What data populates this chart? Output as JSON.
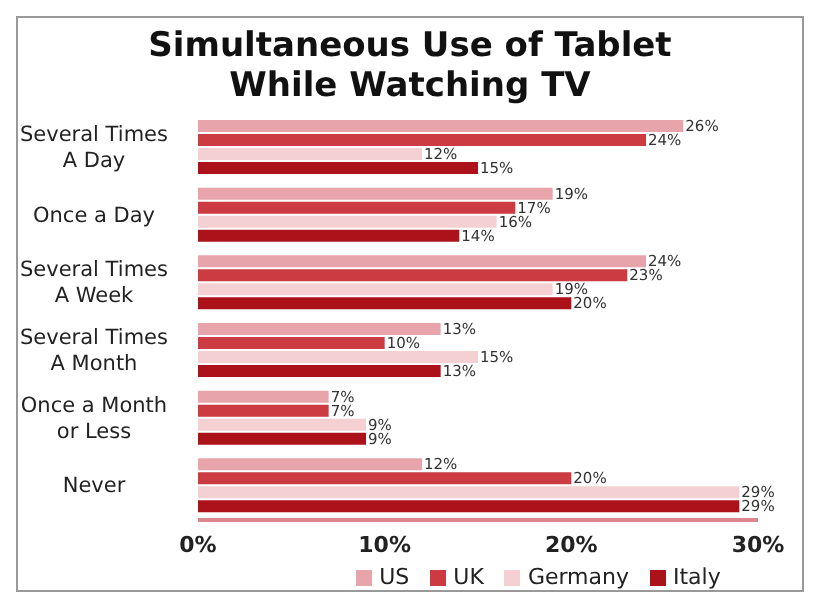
{
  "chart_data": {
    "type": "bar",
    "orientation": "horizontal",
    "title": "Simultaneous Use of Tablet While Watching TV",
    "categories": [
      "Several Times A Day",
      "Once a Day",
      "Several Times A Week",
      "Several Times A Month",
      "Once a Month or Less",
      "Never"
    ],
    "series": [
      {
        "name": "US",
        "color": "#e8a4ab",
        "values": [
          26,
          19,
          24,
          13,
          7,
          12
        ],
        "value_labels": [
          "26%",
          "19%",
          "24%",
          "13%",
          "7%",
          "12%"
        ]
      },
      {
        "name": "UK",
        "color": "#cc3b42",
        "values": [
          24,
          17,
          23,
          10,
          7,
          20
        ],
        "value_labels": [
          "24%",
          "17%",
          "23%",
          "10%",
          "7%",
          "20%"
        ]
      },
      {
        "name": "Germany",
        "color": "#f4d0d3",
        "values": [
          12,
          16,
          19,
          15,
          9,
          29
        ],
        "value_labels": [
          "12%",
          "16%",
          "19%",
          "15%",
          "9%",
          "29%"
        ]
      },
      {
        "name": "Italy",
        "color": "#ab1219",
        "values": [
          15,
          14,
          20,
          13,
          9,
          29
        ],
        "value_labels": [
          "15%",
          "14%",
          "20%",
          "13%",
          "9%",
          "29%"
        ]
      }
    ],
    "xlim": [
      0,
      30
    ],
    "xticks": [
      {
        "value": 0,
        "label": "0%"
      },
      {
        "value": 10,
        "label": "10%"
      },
      {
        "value": 20,
        "label": "20%"
      },
      {
        "value": 30,
        "label": "30%"
      }
    ],
    "grid": false,
    "legend": "bottom"
  }
}
